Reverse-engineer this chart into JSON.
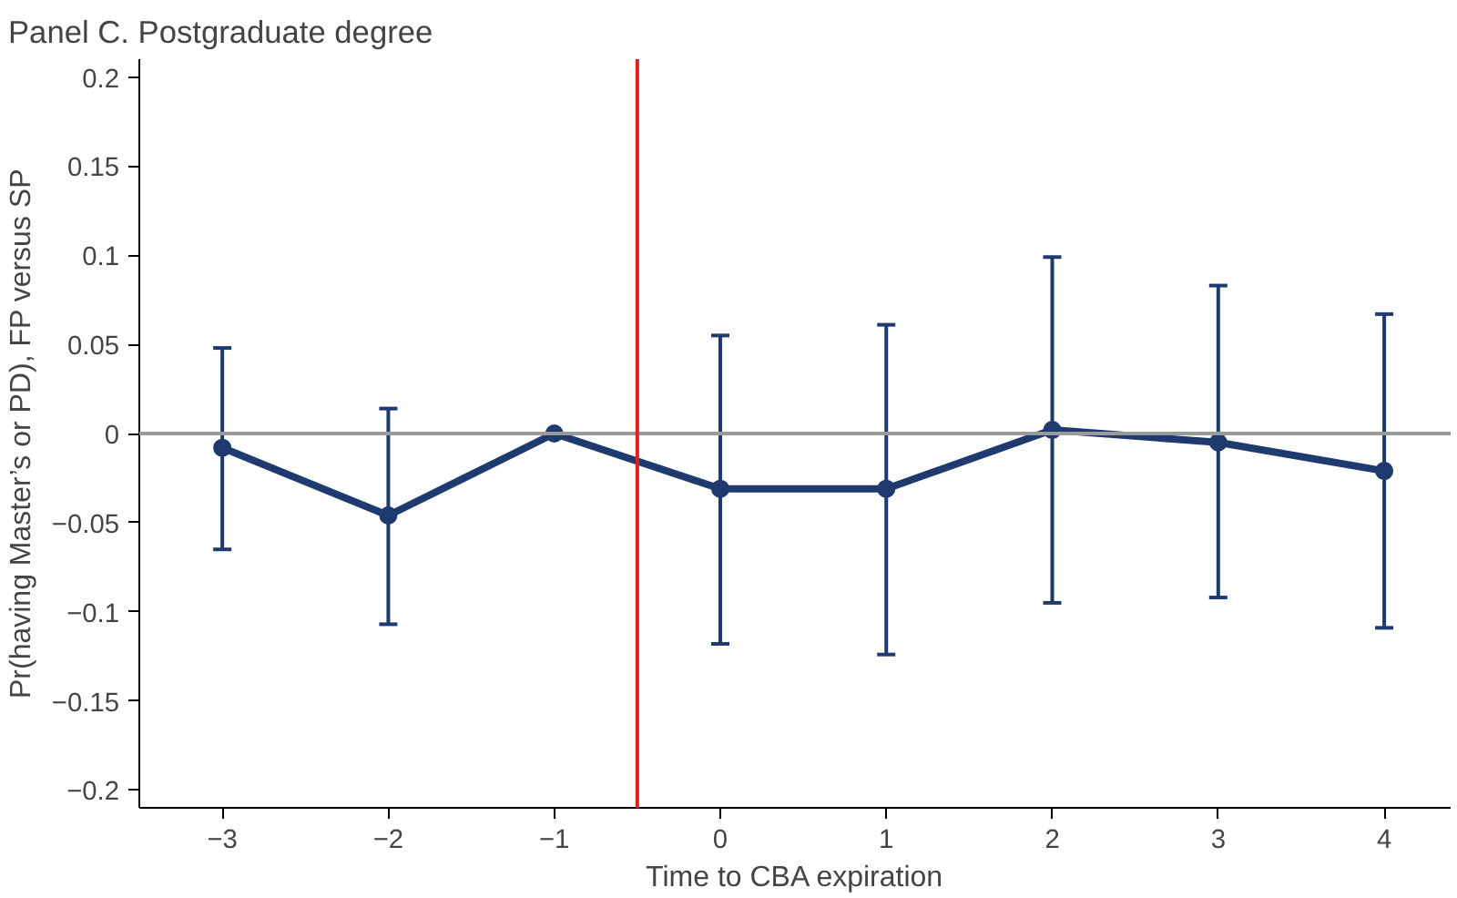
{
  "chart_data": {
    "type": "line",
    "title": "Panel C. Postgraduate degree",
    "xlabel": "Time to CBA expiration",
    "ylabel": "Pr(having Master’s or PD), FP versus SP",
    "x": [
      -3,
      -2,
      -1,
      0,
      1,
      2,
      3,
      4
    ],
    "series": [
      {
        "color": "#1f3a6e",
        "values": [
          -0.008,
          -0.046,
          0,
          -0.031,
          -0.031,
          0.002,
          -0.005,
          -0.021
        ],
        "errors": [
          [
            -0.065,
            0.048
          ],
          [
            -0.107,
            0.014
          ],
          null,
          [
            -0.118,
            0.055
          ],
          [
            -0.124,
            0.061
          ],
          [
            -0.095,
            0.099
          ],
          [
            -0.092,
            0.083
          ],
          [
            -0.109,
            0.067
          ]
        ]
      }
    ],
    "marker": "circle",
    "line_style": "solid",
    "grid": false,
    "xlim": [
      -3.5,
      4.4
    ],
    "ylim": [
      -0.21,
      0.21
    ],
    "xticks": [
      {
        "value": -3,
        "label": "−3"
      },
      {
        "value": -2,
        "label": "−2"
      },
      {
        "value": -1,
        "label": "−1"
      },
      0,
      1,
      2,
      3,
      4
    ],
    "yticks": [
      {
        "value": -0.2,
        "label": "−0.2"
      },
      {
        "value": -0.15,
        "label": "−0.15"
      },
      {
        "value": -0.1,
        "label": "−0.1"
      },
      {
        "value": -0.05,
        "label": "−0.05"
      },
      0,
      0.05,
      0.1,
      0.15,
      0.2
    ],
    "ref_lines": [
      {
        "axis": "y",
        "value": 0,
        "color": "#999999"
      },
      {
        "axis": "x",
        "value": -0.5,
        "color": "#e02020"
      }
    ]
  }
}
